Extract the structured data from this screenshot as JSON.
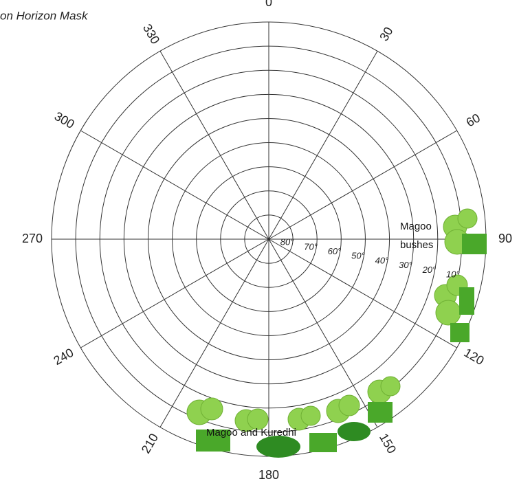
{
  "chart_data": {
    "type": "polar",
    "title": "on Horizon Mask",
    "xticks": [
      0,
      30,
      60,
      90,
      120,
      150,
      180,
      210,
      240,
      270,
      300,
      330
    ],
    "rlim": [
      90,
      0
    ],
    "rticks": [
      {
        "value": 80,
        "label": "80°"
      },
      {
        "value": 70,
        "label": "70°"
      },
      {
        "value": 60,
        "label": "60°"
      },
      {
        "value": 50,
        "label": "50°"
      },
      {
        "value": 40,
        "label": "40°"
      },
      {
        "value": 30,
        "label": "30°"
      },
      {
        "value": 20,
        "label": "20°"
      },
      {
        "value": 10,
        "label": "10°"
      }
    ],
    "grid": true,
    "annotations": [
      "Magoo bushes",
      "Magoo and Kuredhi"
    ]
  }
}
